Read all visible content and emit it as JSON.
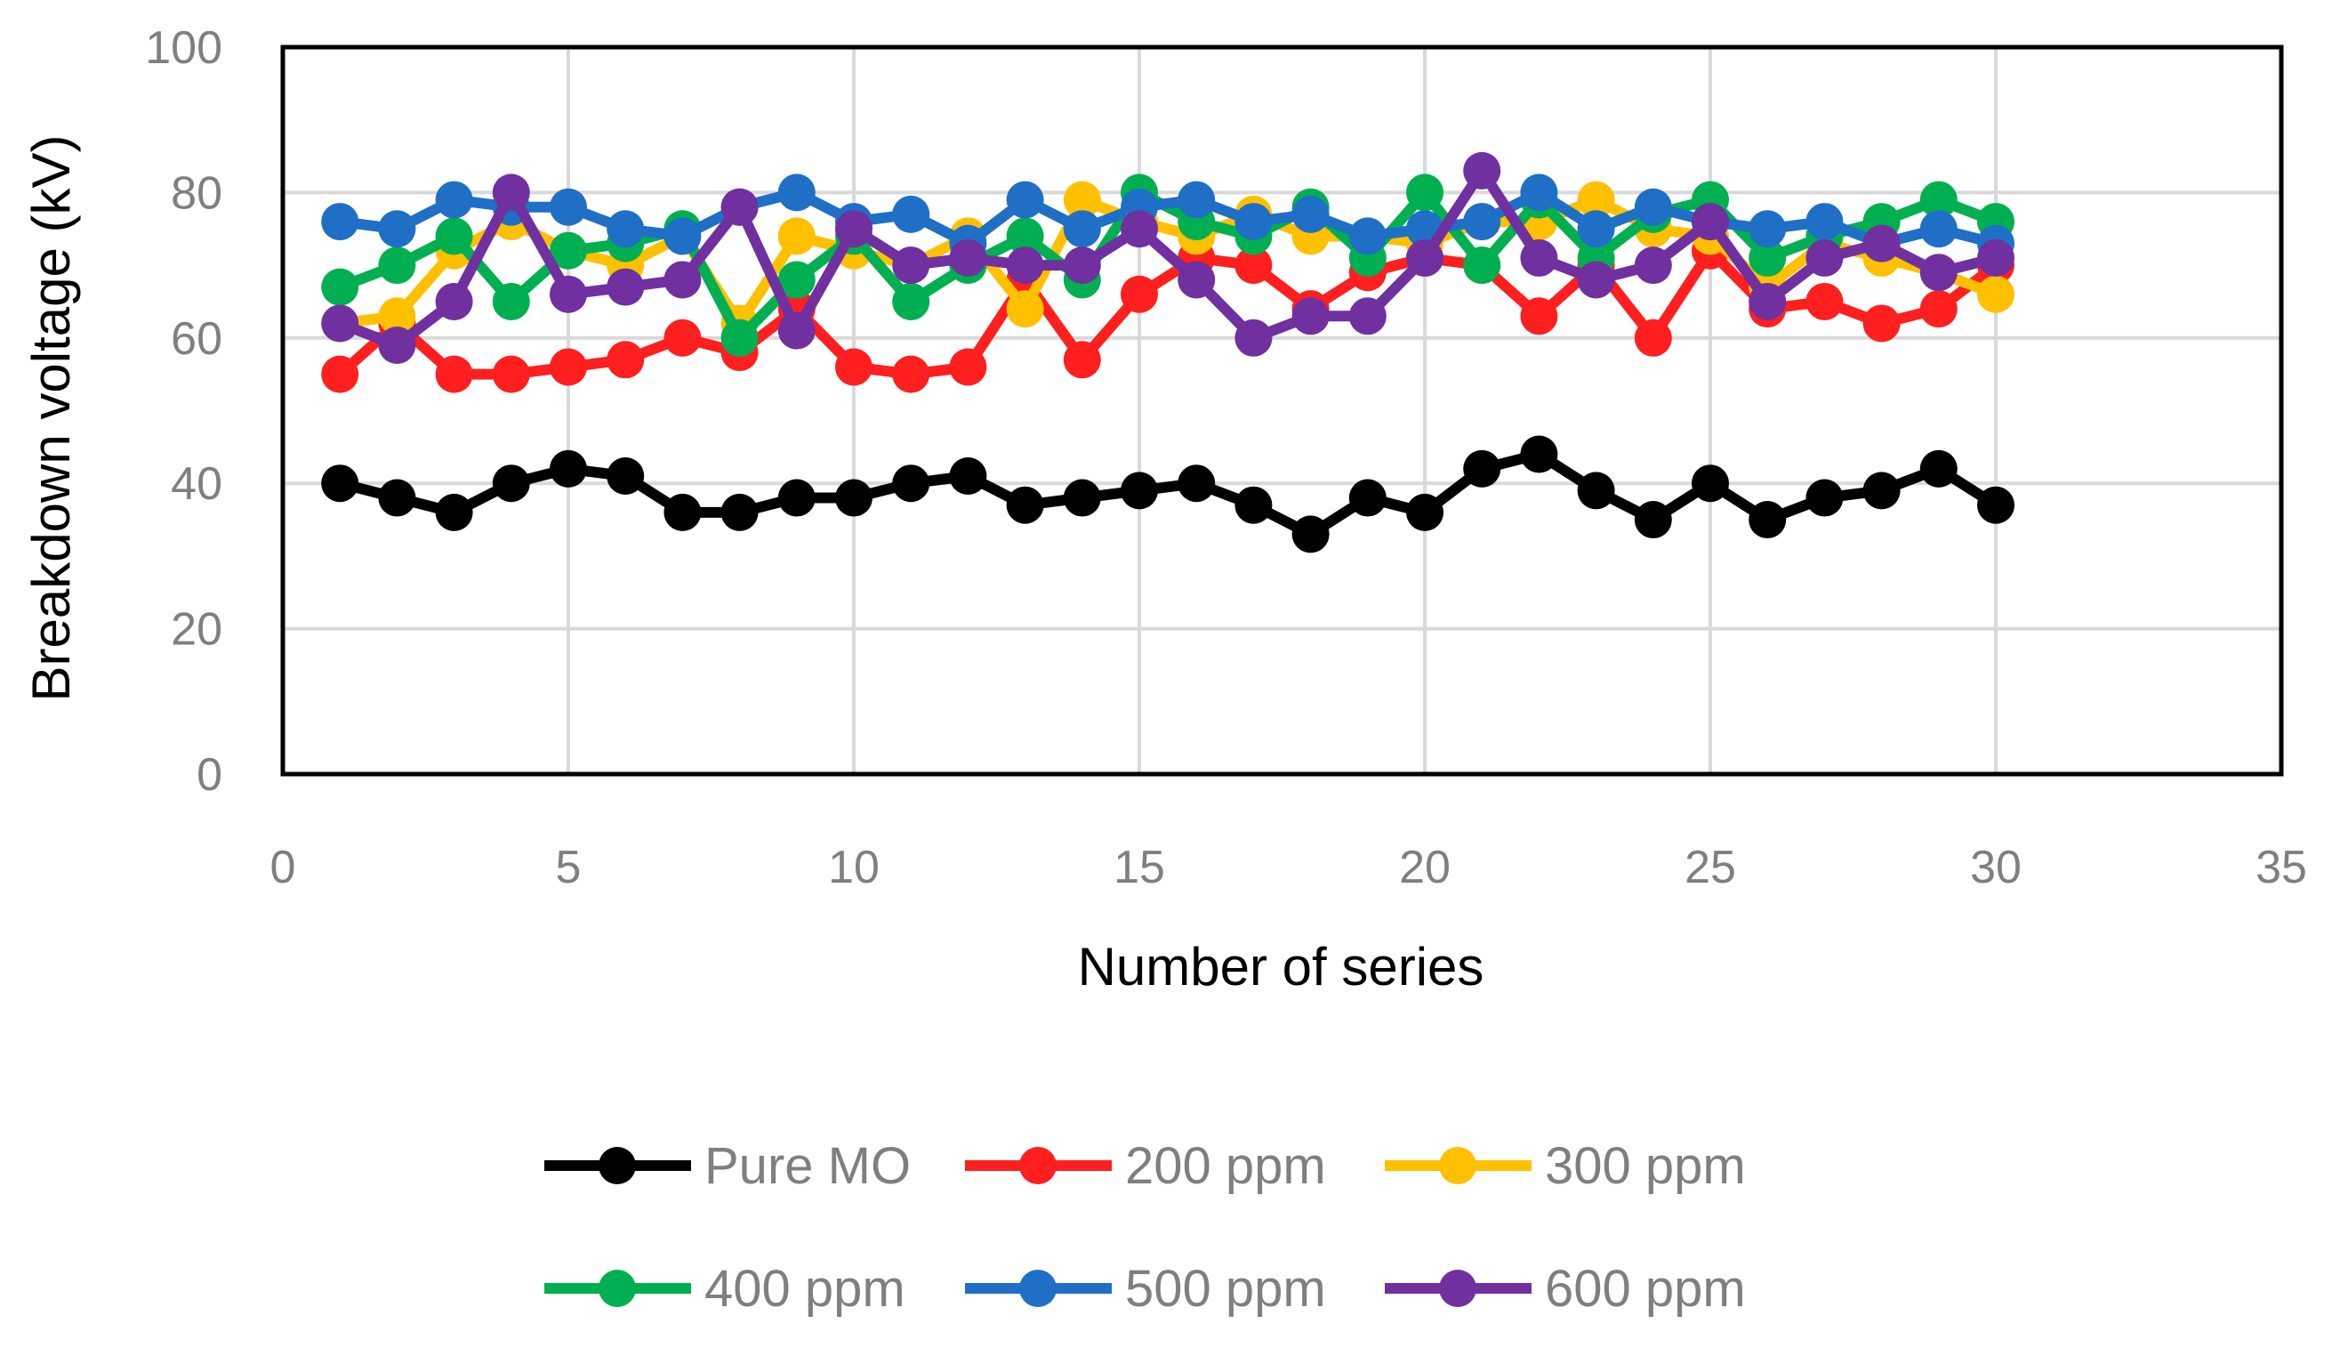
{
  "chart_data": {
    "type": "line",
    "title": "",
    "xlabel": "Number of series",
    "ylabel": "Breakdown voltage (kV)",
    "xlim": [
      0,
      35
    ],
    "ylim": [
      0,
      100
    ],
    "xticks": [
      0,
      5,
      10,
      15,
      20,
      25,
      30,
      35
    ],
    "yticks": [
      0,
      20,
      40,
      60,
      80,
      100
    ],
    "grid": true,
    "legend_position": "bottom",
    "x": [
      1,
      2,
      3,
      4,
      5,
      6,
      7,
      8,
      9,
      10,
      11,
      12,
      13,
      14,
      15,
      16,
      17,
      18,
      19,
      20,
      21,
      22,
      23,
      24,
      25,
      26,
      27,
      28,
      29,
      30
    ],
    "series": [
      {
        "name": "Pure MO",
        "color": "#000000",
        "values": [
          40,
          38,
          36,
          40,
          42,
          41,
          36,
          36,
          38,
          38,
          40,
          41,
          37,
          38,
          39,
          40,
          37,
          33,
          38,
          36,
          42,
          44,
          39,
          35,
          40,
          35,
          38,
          39,
          42,
          37
        ]
      },
      {
        "name": "200 ppm",
        "color": "#ff1f1f",
        "values": [
          55,
          62,
          55,
          55,
          56,
          57,
          60,
          58,
          64,
          56,
          55,
          56,
          68,
          57,
          66,
          71,
          70,
          64,
          69,
          71,
          70,
          63,
          70,
          60,
          72,
          64,
          65,
          62,
          64,
          70
        ]
      },
      {
        "name": "300 ppm",
        "color": "#ffc000",
        "values": [
          62,
          63,
          72,
          76,
          72,
          70,
          74,
          62,
          74,
          72,
          70,
          74,
          64,
          79,
          76,
          74,
          77,
          74,
          74,
          73,
          76,
          76,
          79,
          75,
          74,
          67,
          73,
          71,
          69,
          66
        ]
      },
      {
        "name": "400 ppm",
        "color": "#00b050",
        "values": [
          67,
          70,
          74,
          65,
          72,
          73,
          75,
          60,
          68,
          74,
          65,
          70,
          74,
          68,
          80,
          76,
          74,
          78,
          71,
          80,
          70,
          79,
          71,
          77,
          79,
          71,
          74,
          76,
          79,
          76
        ]
      },
      {
        "name": "500 ppm",
        "color": "#1f6fc6",
        "values": [
          76,
          75,
          79,
          78,
          78,
          75,
          74,
          78,
          80,
          76,
          77,
          73,
          79,
          75,
          78,
          79,
          76,
          77,
          74,
          75,
          76,
          80,
          75,
          78,
          76,
          75,
          76,
          73,
          75,
          73
        ]
      },
      {
        "name": "600 ppm",
        "color": "#7030a0",
        "values": [
          62,
          59,
          65,
          80,
          66,
          67,
          68,
          78,
          61,
          75,
          70,
          71,
          70,
          70,
          75,
          68,
          60,
          63,
          63,
          71,
          83,
          71,
          68,
          70,
          76,
          65,
          71,
          73,
          69,
          71
        ]
      }
    ]
  }
}
